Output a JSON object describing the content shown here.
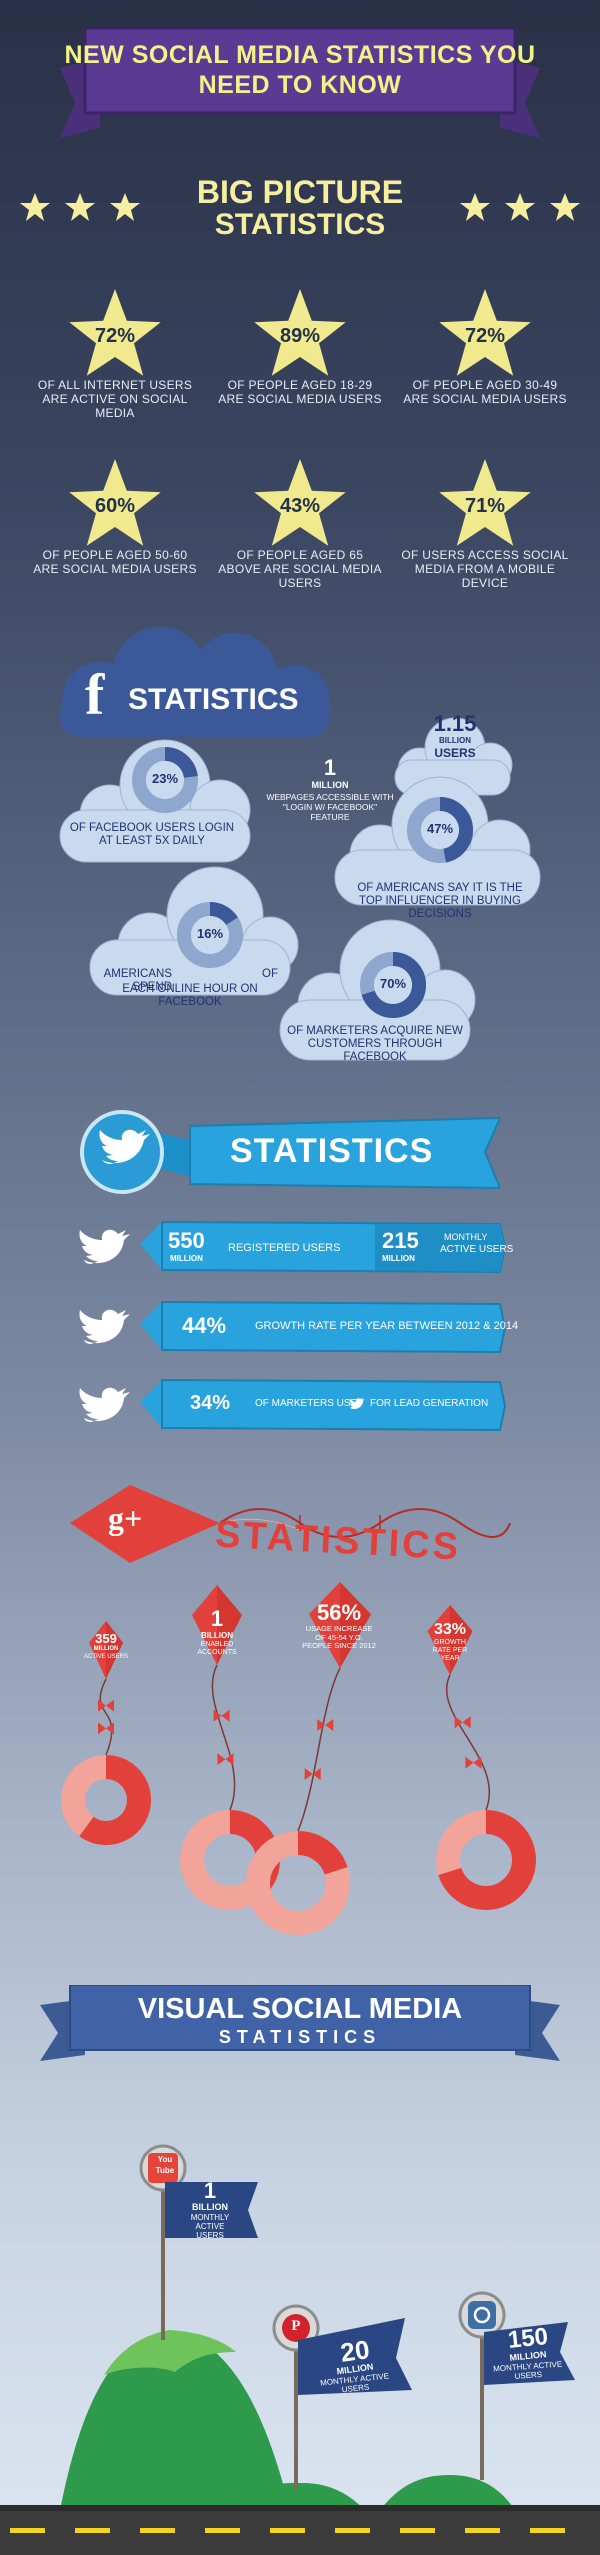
{
  "header": {
    "title": "NEW SOCIAL MEDIA STATISTICS YOU NEED TO KNOW"
  },
  "big_picture": {
    "title_line1": "BIG PICTURE",
    "title_line2": "STATISTICS",
    "stats": [
      {
        "pct": "72%",
        "desc": "OF ALL INTERNET USERS ARE ACTIVE ON SOCIAL MEDIA"
      },
      {
        "pct": "89%",
        "desc": "OF PEOPLE AGED 18-29 ARE SOCIAL MEDIA USERS"
      },
      {
        "pct": "72%",
        "desc": "OF PEOPLE AGED 30-49 ARE SOCIAL MEDIA USERS"
      },
      {
        "pct": "60%",
        "desc": "OF PEOPLE AGED 50-60 ARE SOCIAL MEDIA USERS"
      },
      {
        "pct": "43%",
        "desc": "OF PEOPLE AGED 65 ABOVE ARE SOCIAL MEDIA USERS"
      },
      {
        "pct": "71%",
        "desc": "OF USERS ACCESS SOCIAL MEDIA FROM A MOBILE DEVICE"
      }
    ]
  },
  "facebook": {
    "logo": "f",
    "title": "STATISTICS",
    "billion_users": {
      "num": "1.15",
      "unit": "BILLION",
      "label": "USERS"
    },
    "webpages": {
      "num": "1",
      "unit": "MILLION",
      "desc": "WEBPAGES ACCESSIBLE WITH \"LOGIN W/ FACEBOOK\" FEATURE"
    },
    "login_daily": {
      "pct": "23%",
      "pct_value": 0.23,
      "desc": "OF FACEBOOK USERS LOGIN AT LEAST 5X DAILY"
    },
    "influencer": {
      "pct": "47%",
      "pct_value": 0.47,
      "desc": "OF AMERICANS SAY IT IS THE TOP INFLUENCER IN BUYING DECISIONS"
    },
    "hour": {
      "pct": "16%",
      "pct_value": 0.16,
      "desc_left": "AMERICANS SPEND",
      "desc_right": "OF",
      "desc_line2": "EACH ONLINE HOUR ON FACEBOOK"
    },
    "marketers": {
      "pct": "70%",
      "pct_value": 0.7,
      "desc": "OF MARKETERS ACQUIRE NEW CUSTOMERS THROUGH FACEBOOK"
    }
  },
  "twitter": {
    "title": "STATISTICS",
    "row1": {
      "num1": "550",
      "unit1": "MILLION",
      "label1": "REGISTERED USERS",
      "num2": "215",
      "unit2": "MILLION",
      "label2a": "MONTHLY",
      "label2b": "ACTIVE USERS"
    },
    "row2": {
      "num": "44%",
      "label": "GROWTH RATE PER YEAR BETWEEN 2012 & 2014"
    },
    "row3": {
      "num": "34%",
      "label_a": "OF MARKETERS USE",
      "label_b": "FOR LEAD GENERATION"
    }
  },
  "gplus": {
    "logo": "g+",
    "title": "STATISTICS",
    "kites": [
      {
        "num": "359",
        "unit": "MILLION",
        "label": "ACTIVE USERS"
      },
      {
        "num": "1",
        "unit": "BILLION",
        "label": "ENABLED ACCOUNTS"
      },
      {
        "num": "56%",
        "label": "USAGE INCREASE OF 45-54 Y.O. PEOPLE SINCE 2012"
      },
      {
        "num": "33%",
        "label": "GROWTH RATE PER YEAR"
      }
    ]
  },
  "visual": {
    "title_line1": "VISUAL SOCIAL MEDIA",
    "title_line2": "STATISTICS",
    "youtube": {
      "logo_top": "You",
      "logo_bottom": "Tube",
      "num": "1",
      "unit": "BILLION",
      "label": "MONTHLY ACTIVE USERS"
    },
    "pinterest": {
      "logo": "P",
      "num": "20",
      "unit": "MILLION",
      "label": "MONTHLY ACTIVE USERS"
    },
    "instagram": {
      "num": "150",
      "unit": "MILLION",
      "label": "MONTHLY ACTIVE USERS"
    }
  },
  "colors": {
    "yellow": "#f6efa0",
    "fb_blue": "#3b5998",
    "tw_blue": "#29a3dd",
    "gp_red": "#e1413a",
    "gp_pink": "#f2a39a",
    "navy": "#1f3470"
  }
}
